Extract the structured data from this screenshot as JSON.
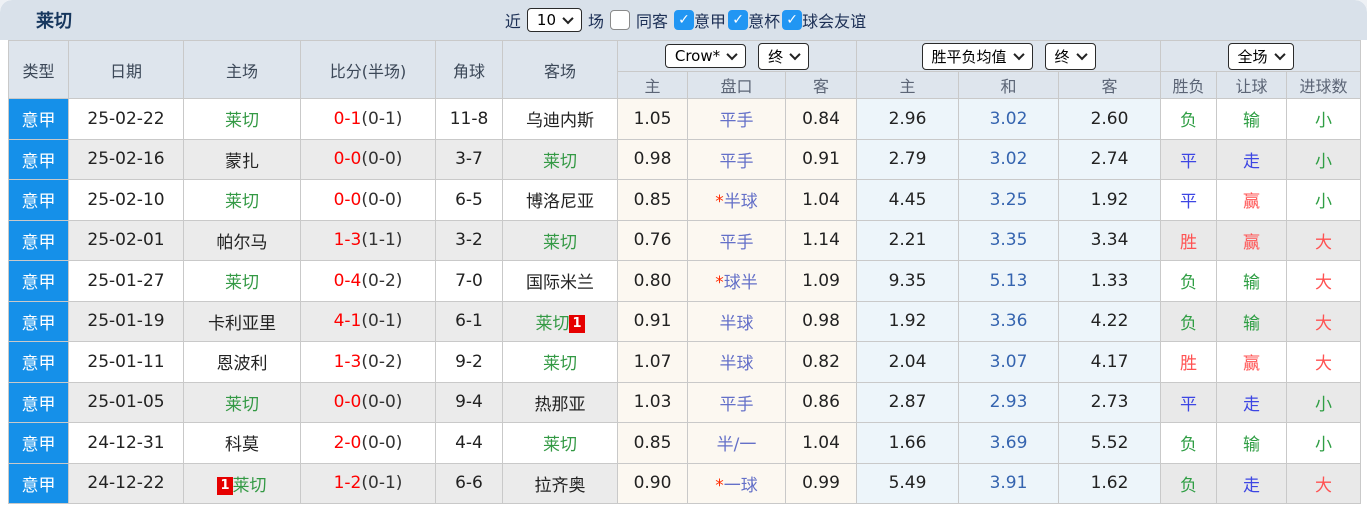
{
  "title": "莱切",
  "toolbar": {
    "recent_label": "近",
    "matches_count": "10",
    "matches_label": "场",
    "same_venue_label": "同客",
    "same_venue_checked": false,
    "check_glyph": "✓",
    "filters": [
      {
        "label": "意甲",
        "checked": true
      },
      {
        "label": "意杯",
        "checked": true
      },
      {
        "label": "球会友谊",
        "checked": true
      }
    ]
  },
  "header": {
    "type": "类型",
    "date": "日期",
    "home": "主场",
    "score": "比分(半场)",
    "corner": "角球",
    "away": "客场",
    "odds_company_select": "Crow*",
    "odds_time_select": "终",
    "avg_select": "胜平负均值",
    "avg_time_select": "终",
    "scope_select": "全场",
    "odds_home": "主",
    "odds_handicap": "盘口",
    "odds_away": "客",
    "avg_home": "主",
    "avg_draw": "和",
    "avg_away": "客",
    "result_wdl": "胜负",
    "result_handicap": "让球",
    "result_goals": "进球数"
  },
  "colors": {
    "league_cell_bg": "#1590e9",
    "team_highlight_green": "#339944",
    "score_red": "#ff0000",
    "handicap_text_blue": "#6470c8",
    "star_red": "#ff2a00",
    "avg_draw_blue": "#3564af",
    "win_red": "#ff5252",
    "draw_blue": "#3d46e3",
    "lose_green": "#2f9e44",
    "checkbox_blue": "#2196f3",
    "topbar_bg": "#d9e1ea",
    "odds_col_bg": "#fcf8f1",
    "avg_col_bg": "#edf5fa"
  },
  "rows": [
    {
      "type": "意甲",
      "date": "25-02-22",
      "home": "莱切",
      "home_green": true,
      "home_badge": "",
      "home_badge_pos": "",
      "score": "0-1",
      "half": "(0-1)",
      "corner": "11-8",
      "away": "乌迪内斯",
      "away_green": false,
      "away_badge": "",
      "away_badge_pos": "",
      "odds_home": "1.05",
      "handicap": "平手",
      "handicap_star": false,
      "odds_away": "0.84",
      "avg_home": "2.96",
      "avg_draw": "3.02",
      "avg_away": "2.60",
      "wdl": "负",
      "wdl_color": "green",
      "let": "输",
      "let_color": "green",
      "goals": "小",
      "goals_color": "green"
    },
    {
      "type": "意甲",
      "date": "25-02-16",
      "home": "蒙扎",
      "home_green": false,
      "home_badge": "",
      "home_badge_pos": "",
      "score": "0-0",
      "half": "(0-0)",
      "corner": "3-7",
      "away": "莱切",
      "away_green": true,
      "away_badge": "",
      "away_badge_pos": "",
      "odds_home": "0.98",
      "handicap": "平手",
      "handicap_star": false,
      "odds_away": "0.91",
      "avg_home": "2.79",
      "avg_draw": "3.02",
      "avg_away": "2.74",
      "wdl": "平",
      "wdl_color": "blue",
      "let": "走",
      "let_color": "blue",
      "goals": "小",
      "goals_color": "green"
    },
    {
      "type": "意甲",
      "date": "25-02-10",
      "home": "莱切",
      "home_green": true,
      "home_badge": "",
      "home_badge_pos": "",
      "score": "0-0",
      "half": "(0-0)",
      "corner": "6-5",
      "away": "博洛尼亚",
      "away_green": false,
      "away_badge": "",
      "away_badge_pos": "",
      "odds_home": "0.85",
      "handicap": "半球",
      "handicap_star": true,
      "odds_away": "1.04",
      "avg_home": "4.45",
      "avg_draw": "3.25",
      "avg_away": "1.92",
      "wdl": "平",
      "wdl_color": "blue",
      "let": "赢",
      "let_color": "red",
      "goals": "小",
      "goals_color": "green"
    },
    {
      "type": "意甲",
      "date": "25-02-01",
      "home": "帕尔马",
      "home_green": false,
      "home_badge": "",
      "home_badge_pos": "",
      "score": "1-3",
      "half": "(1-1)",
      "corner": "3-2",
      "away": "莱切",
      "away_green": true,
      "away_badge": "",
      "away_badge_pos": "",
      "odds_home": "0.76",
      "handicap": "平手",
      "handicap_star": false,
      "odds_away": "1.14",
      "avg_home": "2.21",
      "avg_draw": "3.35",
      "avg_away": "3.34",
      "wdl": "胜",
      "wdl_color": "red",
      "let": "赢",
      "let_color": "red",
      "goals": "大",
      "goals_color": "red"
    },
    {
      "type": "意甲",
      "date": "25-01-27",
      "home": "莱切",
      "home_green": true,
      "home_badge": "",
      "home_badge_pos": "",
      "score": "0-4",
      "half": "(0-2)",
      "corner": "7-0",
      "away": "国际米兰",
      "away_green": false,
      "away_badge": "",
      "away_badge_pos": "",
      "odds_home": "0.80",
      "handicap": "球半",
      "handicap_star": true,
      "odds_away": "1.09",
      "avg_home": "9.35",
      "avg_draw": "5.13",
      "avg_away": "1.33",
      "wdl": "负",
      "wdl_color": "green",
      "let": "输",
      "let_color": "green",
      "goals": "大",
      "goals_color": "red"
    },
    {
      "type": "意甲",
      "date": "25-01-19",
      "home": "卡利亚里",
      "home_green": false,
      "home_badge": "",
      "home_badge_pos": "",
      "score": "4-1",
      "half": "(0-1)",
      "corner": "6-1",
      "away": "莱切",
      "away_green": true,
      "away_badge": "1",
      "away_badge_pos": "after",
      "odds_home": "0.91",
      "handicap": "半球",
      "handicap_star": false,
      "odds_away": "0.98",
      "avg_home": "1.92",
      "avg_draw": "3.36",
      "avg_away": "4.22",
      "wdl": "负",
      "wdl_color": "green",
      "let": "输",
      "let_color": "green",
      "goals": "大",
      "goals_color": "red"
    },
    {
      "type": "意甲",
      "date": "25-01-11",
      "home": "恩波利",
      "home_green": false,
      "home_badge": "",
      "home_badge_pos": "",
      "score": "1-3",
      "half": "(0-2)",
      "corner": "9-2",
      "away": "莱切",
      "away_green": true,
      "away_badge": "",
      "away_badge_pos": "",
      "odds_home": "1.07",
      "handicap": "半球",
      "handicap_star": false,
      "odds_away": "0.82",
      "avg_home": "2.04",
      "avg_draw": "3.07",
      "avg_away": "4.17",
      "wdl": "胜",
      "wdl_color": "red",
      "let": "赢",
      "let_color": "red",
      "goals": "大",
      "goals_color": "red"
    },
    {
      "type": "意甲",
      "date": "25-01-05",
      "home": "莱切",
      "home_green": true,
      "home_badge": "",
      "home_badge_pos": "",
      "score": "0-0",
      "half": "(0-0)",
      "corner": "9-4",
      "away": "热那亚",
      "away_green": false,
      "away_badge": "",
      "away_badge_pos": "",
      "odds_home": "1.03",
      "handicap": "平手",
      "handicap_star": false,
      "odds_away": "0.86",
      "avg_home": "2.87",
      "avg_draw": "2.93",
      "avg_away": "2.73",
      "wdl": "平",
      "wdl_color": "blue",
      "let": "走",
      "let_color": "blue",
      "goals": "小",
      "goals_color": "green"
    },
    {
      "type": "意甲",
      "date": "24-12-31",
      "home": "科莫",
      "home_green": false,
      "home_badge": "",
      "home_badge_pos": "",
      "score": "2-0",
      "half": "(0-0)",
      "corner": "4-4",
      "away": "莱切",
      "away_green": true,
      "away_badge": "",
      "away_badge_pos": "",
      "odds_home": "0.85",
      "handicap": "半/一",
      "handicap_star": false,
      "odds_away": "1.04",
      "avg_home": "1.66",
      "avg_draw": "3.69",
      "avg_away": "5.52",
      "wdl": "负",
      "wdl_color": "green",
      "let": "输",
      "let_color": "green",
      "goals": "小",
      "goals_color": "green"
    },
    {
      "type": "意甲",
      "date": "24-12-22",
      "home": "莱切",
      "home_green": true,
      "home_badge": "1",
      "home_badge_pos": "before",
      "score": "1-2",
      "half": "(0-1)",
      "corner": "6-6",
      "away": "拉齐奥",
      "away_green": false,
      "away_badge": "",
      "away_badge_pos": "",
      "odds_home": "0.90",
      "handicap": "一球",
      "handicap_star": true,
      "odds_away": "0.99",
      "avg_home": "5.49",
      "avg_draw": "3.91",
      "avg_away": "1.62",
      "wdl": "负",
      "wdl_color": "green",
      "let": "走",
      "let_color": "blue",
      "goals": "大",
      "goals_color": "red"
    }
  ]
}
